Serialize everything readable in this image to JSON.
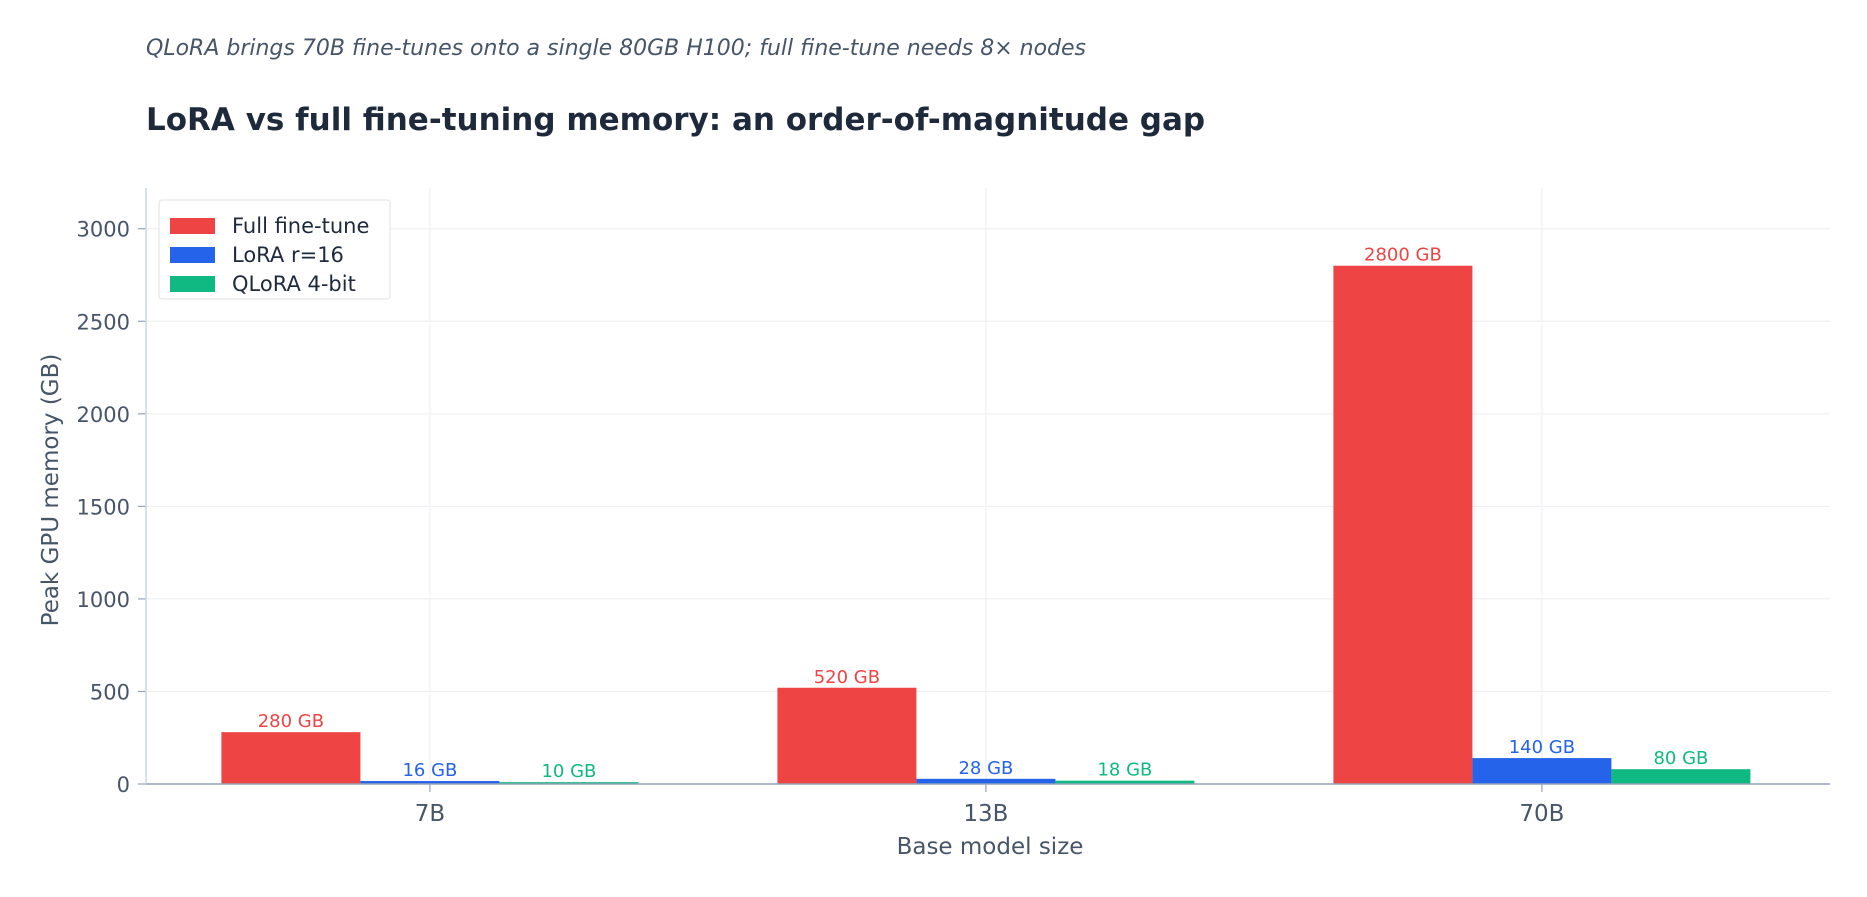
{
  "subtitle": "QLoRA brings 70B fine-tunes onto a single 80GB H100; full fine-tune needs 8× nodes",
  "title": "LoRA vs full fine-tuning memory: an order-of-magnitude gap",
  "chart_data": {
    "type": "bar",
    "title": "LoRA vs full fine-tuning memory: an order-of-magnitude gap",
    "subtitle": "QLoRA brings 70B fine-tunes onto a single 80GB H100; full fine-tune needs 8× nodes",
    "xlabel": "Base model size",
    "ylabel": "Peak GPU memory (GB)",
    "categories": [
      "7B",
      "13B",
      "70B"
    ],
    "ylim": [
      0,
      3220
    ],
    "yticks": [
      0,
      500,
      1000,
      1500,
      2000,
      2500,
      3000
    ],
    "grid": true,
    "legend_position": "top-left",
    "value_suffix": " GB",
    "series": [
      {
        "name": "Full fine-tune",
        "color": "#ef4444",
        "values": [
          280,
          520,
          2800
        ]
      },
      {
        "name": "LoRA r=16",
        "color": "#2563eb",
        "values": [
          16,
          28,
          140
        ]
      },
      {
        "name": "QLoRA 4-bit",
        "color": "#10b981",
        "values": [
          10,
          18,
          80
        ]
      }
    ]
  }
}
